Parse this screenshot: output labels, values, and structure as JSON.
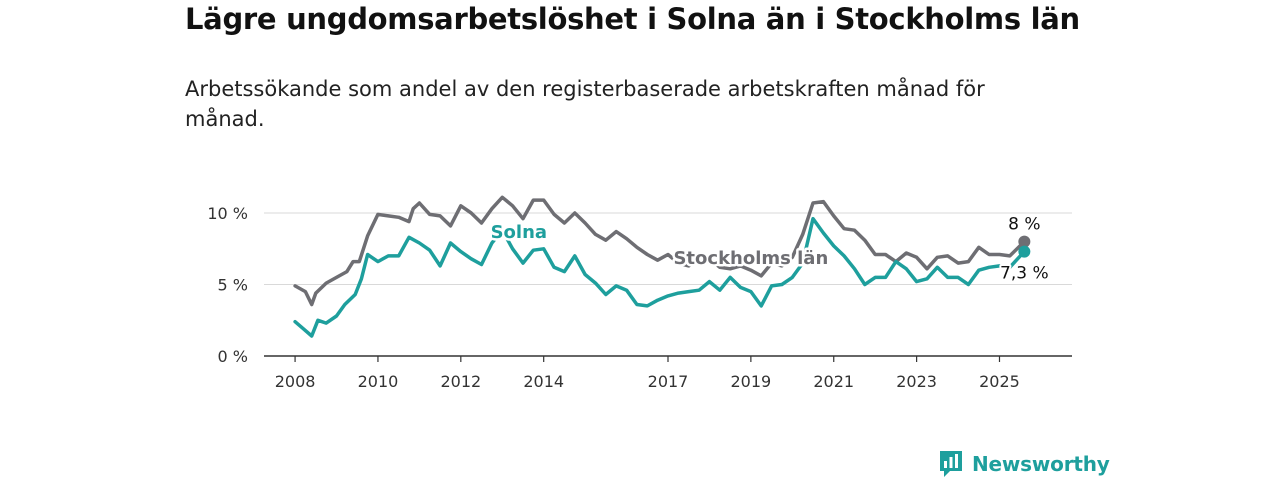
{
  "header": {
    "title": "Lägre ungdomsarbetslöshet i Solna än i Stockholms län",
    "subtitle": "Arbetssökande som andel av den registerbaserade arbetskraften månad för månad."
  },
  "branding": {
    "logo_text": "Newsworthy",
    "logo_icon": "bar-chart-icon",
    "brand_color": "#1e9f9d"
  },
  "chart_data": {
    "type": "line",
    "ylim": [
      0,
      10
    ],
    "y_ticks": [
      0,
      5,
      10
    ],
    "y_tick_labels": [
      "0 %",
      "5 %",
      "10 %"
    ],
    "x_ticks": [
      2008,
      2010,
      2012,
      2014,
      2017,
      2019,
      2021,
      2023,
      2025
    ],
    "x_tick_labels": [
      "2008",
      "2010",
      "2012",
      "2014",
      "2017",
      "2019",
      "2021",
      "2023",
      "2025"
    ],
    "grid": true,
    "legend": "inline labels",
    "series": [
      {
        "name": "Stockholms län",
        "color": "#6e6e73",
        "end_label": "8 %",
        "points": [
          [
            2008.0,
            4.9
          ],
          [
            2008.25,
            4.5
          ],
          [
            2008.4,
            3.6
          ],
          [
            2008.5,
            4.4
          ],
          [
            2008.75,
            5.1
          ],
          [
            2009.0,
            5.5
          ],
          [
            2009.25,
            5.9
          ],
          [
            2009.4,
            6.6
          ],
          [
            2009.55,
            6.6
          ],
          [
            2009.75,
            8.4
          ],
          [
            2010.0,
            9.9
          ],
          [
            2010.25,
            9.8
          ],
          [
            2010.5,
            9.7
          ],
          [
            2010.75,
            9.4
          ],
          [
            2010.85,
            10.3
          ],
          [
            2011.0,
            10.7
          ],
          [
            2011.25,
            9.9
          ],
          [
            2011.5,
            9.8
          ],
          [
            2011.75,
            9.1
          ],
          [
            2012.0,
            10.5
          ],
          [
            2012.25,
            10.0
          ],
          [
            2012.5,
            9.3
          ],
          [
            2012.75,
            10.3
          ],
          [
            2013.0,
            11.1
          ],
          [
            2013.25,
            10.5
          ],
          [
            2013.5,
            9.6
          ],
          [
            2013.75,
            10.9
          ],
          [
            2014.0,
            10.9
          ],
          [
            2014.25,
            9.9
          ],
          [
            2014.5,
            9.3
          ],
          [
            2014.75,
            10.0
          ],
          [
            2015.0,
            9.3
          ],
          [
            2015.25,
            8.5
          ],
          [
            2015.5,
            8.1
          ],
          [
            2015.75,
            8.7
          ],
          [
            2016.0,
            8.2
          ],
          [
            2016.25,
            7.6
          ],
          [
            2016.5,
            7.1
          ],
          [
            2016.75,
            6.7
          ],
          [
            2017.0,
            7.1
          ],
          [
            2017.25,
            6.5
          ],
          [
            2017.5,
            6.3
          ],
          [
            2017.75,
            6.8
          ],
          [
            2018.0,
            6.8
          ],
          [
            2018.25,
            6.2
          ],
          [
            2018.5,
            6.1
          ],
          [
            2018.75,
            6.3
          ],
          [
            2019.0,
            6.0
          ],
          [
            2019.25,
            5.6
          ],
          [
            2019.5,
            6.5
          ],
          [
            2019.75,
            6.3
          ],
          [
            2020.0,
            6.9
          ],
          [
            2020.25,
            8.5
          ],
          [
            2020.5,
            10.7
          ],
          [
            2020.75,
            10.8
          ],
          [
            2021.0,
            9.8
          ],
          [
            2021.25,
            8.9
          ],
          [
            2021.5,
            8.8
          ],
          [
            2021.75,
            8.1
          ],
          [
            2022.0,
            7.1
          ],
          [
            2022.25,
            7.1
          ],
          [
            2022.5,
            6.6
          ],
          [
            2022.75,
            7.2
          ],
          [
            2023.0,
            6.9
          ],
          [
            2023.25,
            6.1
          ],
          [
            2023.5,
            6.9
          ],
          [
            2023.75,
            7.0
          ],
          [
            2024.0,
            6.5
          ],
          [
            2024.25,
            6.6
          ],
          [
            2024.5,
            7.6
          ],
          [
            2024.75,
            7.1
          ],
          [
            2025.0,
            7.1
          ],
          [
            2025.25,
            7.0
          ],
          [
            2025.6,
            8.0
          ]
        ]
      },
      {
        "name": "Solna",
        "color": "#1e9f9d",
        "end_label": "7,3 %",
        "points": [
          [
            2008.0,
            2.4
          ],
          [
            2008.2,
            1.9
          ],
          [
            2008.4,
            1.4
          ],
          [
            2008.55,
            2.5
          ],
          [
            2008.75,
            2.3
          ],
          [
            2009.0,
            2.8
          ],
          [
            2009.2,
            3.6
          ],
          [
            2009.45,
            4.3
          ],
          [
            2009.6,
            5.4
          ],
          [
            2009.75,
            7.1
          ],
          [
            2010.0,
            6.6
          ],
          [
            2010.25,
            7.0
          ],
          [
            2010.5,
            7.0
          ],
          [
            2010.75,
            8.3
          ],
          [
            2011.0,
            7.9
          ],
          [
            2011.25,
            7.4
          ],
          [
            2011.5,
            6.3
          ],
          [
            2011.75,
            7.9
          ],
          [
            2012.0,
            7.3
          ],
          [
            2012.25,
            6.8
          ],
          [
            2012.5,
            6.4
          ],
          [
            2012.75,
            7.9
          ],
          [
            2013.0,
            8.8
          ],
          [
            2013.25,
            7.5
          ],
          [
            2013.5,
            6.5
          ],
          [
            2013.75,
            7.4
          ],
          [
            2014.0,
            7.5
          ],
          [
            2014.25,
            6.2
          ],
          [
            2014.5,
            5.9
          ],
          [
            2014.75,
            7.0
          ],
          [
            2015.0,
            5.7
          ],
          [
            2015.25,
            5.1
          ],
          [
            2015.5,
            4.3
          ],
          [
            2015.75,
            4.9
          ],
          [
            2016.0,
            4.6
          ],
          [
            2016.25,
            3.6
          ],
          [
            2016.5,
            3.5
          ],
          [
            2016.75,
            3.9
          ],
          [
            2017.0,
            4.2
          ],
          [
            2017.25,
            4.4
          ],
          [
            2017.5,
            4.5
          ],
          [
            2017.75,
            4.6
          ],
          [
            2018.0,
            5.2
          ],
          [
            2018.25,
            4.6
          ],
          [
            2018.5,
            5.5
          ],
          [
            2018.75,
            4.8
          ],
          [
            2019.0,
            4.5
          ],
          [
            2019.25,
            3.5
          ],
          [
            2019.5,
            4.9
          ],
          [
            2019.75,
            5.0
          ],
          [
            2020.0,
            5.5
          ],
          [
            2020.25,
            6.5
          ],
          [
            2020.5,
            9.6
          ],
          [
            2020.75,
            8.6
          ],
          [
            2021.0,
            7.7
          ],
          [
            2021.25,
            7.0
          ],
          [
            2021.5,
            6.1
          ],
          [
            2021.75,
            5.0
          ],
          [
            2022.0,
            5.5
          ],
          [
            2022.25,
            5.5
          ],
          [
            2022.5,
            6.6
          ],
          [
            2022.75,
            6.1
          ],
          [
            2023.0,
            5.2
          ],
          [
            2023.25,
            5.4
          ],
          [
            2023.5,
            6.2
          ],
          [
            2023.75,
            5.5
          ],
          [
            2024.0,
            5.5
          ],
          [
            2024.25,
            5.0
          ],
          [
            2024.5,
            6.0
          ],
          [
            2024.75,
            6.2
          ],
          [
            2025.0,
            6.3
          ],
          [
            2025.25,
            6.2
          ],
          [
            2025.6,
            7.3
          ]
        ]
      }
    ]
  }
}
